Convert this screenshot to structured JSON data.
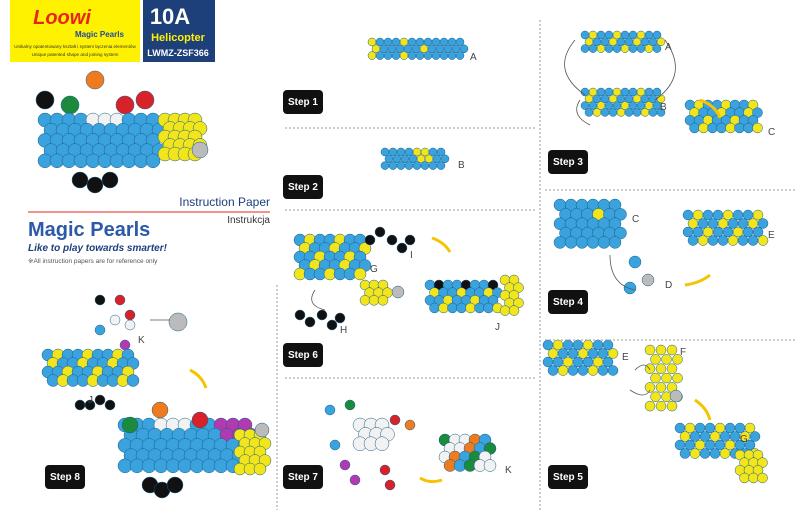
{
  "header": {
    "logo": "Loowi",
    "brand": "Magic Pearls",
    "tagline_pl": "Unikalny opatentowany kształt i system łączenia elementów",
    "tagline_en": "Unique patented shape and joining system",
    "model": "10A",
    "name": "Helicopter",
    "code": "LWMZ-ZSF366"
  },
  "intro": {
    "instruction_en": "Instruction Paper",
    "instruction_pl": "Instrukcja",
    "title": "Magic Pearls",
    "slogan": "Like to play towards smarter!",
    "note": "※All instruction papers are for reference only"
  },
  "steps": [
    {
      "label": "Step 1",
      "parts": [
        "A"
      ]
    },
    {
      "label": "Step 2",
      "parts": [
        "B"
      ]
    },
    {
      "label": "Step 3",
      "parts": [
        "A",
        "B",
        "C"
      ]
    },
    {
      "label": "Step 4",
      "parts": [
        "C",
        "D",
        "E"
      ]
    },
    {
      "label": "Step 5",
      "parts": [
        "E",
        "F",
        "G"
      ]
    },
    {
      "label": "Step 6",
      "parts": [
        "G",
        "I",
        "H",
        "J"
      ]
    },
    {
      "label": "Step 7",
      "parts": [
        "K"
      ]
    },
    {
      "label": "Step 8",
      "parts": [
        "K",
        "J"
      ]
    }
  ]
}
